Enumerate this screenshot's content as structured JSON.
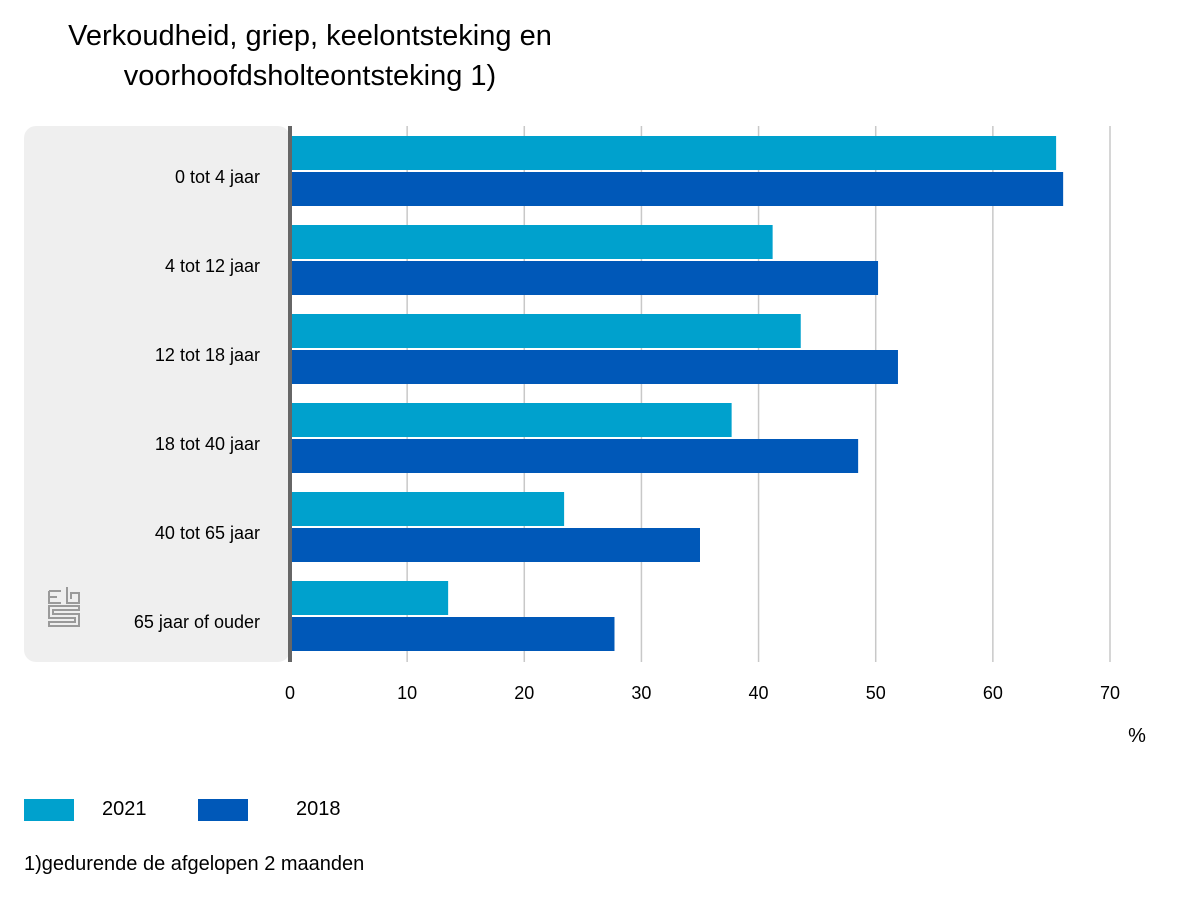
{
  "title": "Verkoudheid, griep, keelontsteking en voorhoofdsholteontsteking 1)",
  "footnote": "1)gedurende de afgelopen 2 maanden",
  "chart_data": {
    "type": "bar",
    "orientation": "horizontal",
    "title": "Verkoudheid, griep, keelontsteking en voorhoofdsholteontsteking 1)",
    "categories": [
      "0 tot 4 jaar",
      "4 tot 12 jaar",
      "12 tot 18 jaar",
      "18 tot 40 jaar",
      "40 tot 65 jaar",
      "65 jaar of ouder"
    ],
    "series": [
      {
        "name": "2021",
        "color": "#00a1cd",
        "values": [
          65.4,
          41.2,
          43.6,
          37.7,
          23.4,
          13.5
        ]
      },
      {
        "name": "2018",
        "color": "#0058b8",
        "values": [
          66.0,
          50.2,
          51.9,
          48.5,
          35.0,
          27.7
        ]
      }
    ],
    "xlabel": "%",
    "xlim": [
      0,
      70
    ],
    "xticks": [
      "0",
      "10",
      "20",
      "30",
      "40",
      "50",
      "60",
      "70"
    ],
    "grid": true,
    "legend": "bottom-left"
  }
}
